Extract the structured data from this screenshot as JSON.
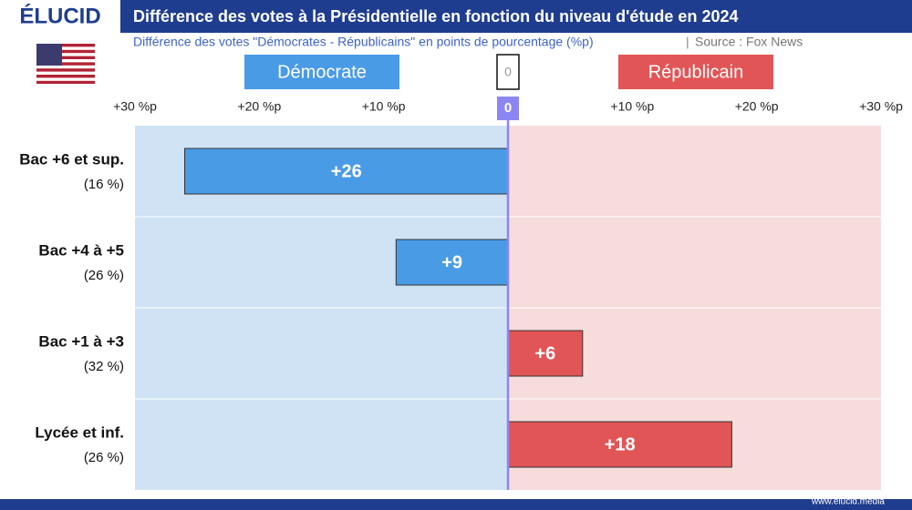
{
  "brand": "ÉLUCID",
  "footer": "www.elucid.media",
  "chart_data": {
    "type": "diverging-bar",
    "title": "Différence des votes à la Présidentielle en fonction du niveau d'étude en 2024",
    "subtitle": "Différence des votes \"Démocrates - Républicains\" en points de pourcentage (%p)",
    "source": "Source : Fox News",
    "categories": [
      "Bac +6 et sup.",
      "Bac +4 à +5",
      "Bac +1 à +3",
      "Lycée et inf."
    ],
    "shares": [
      "(16 %)",
      "(26 %)",
      "(32 %)",
      "(26 %)"
    ],
    "series": [
      {
        "name": "Démocrate",
        "color": "#4a9be6",
        "background": "#cfe3f5",
        "values": [
          -26,
          -9,
          null,
          null
        ],
        "value_labels": [
          "+26",
          "+9",
          null,
          null
        ]
      },
      {
        "name": "Républicain",
        "color": "#e25556",
        "background": "#f7dcdc",
        "values": [
          null,
          null,
          6,
          18
        ],
        "value_labels": [
          null,
          null,
          "+6",
          "+18"
        ]
      }
    ],
    "xlim": [
      -30,
      30
    ],
    "xticks": [
      {
        "value": -30,
        "label": "+30 %p"
      },
      {
        "value": -20,
        "label": "+20 %p"
      },
      {
        "value": -10,
        "label": "+10 %p"
      },
      0,
      {
        "value": 10,
        "label": "+10 %p"
      },
      {
        "value": 20,
        "label": "+20 %p"
      },
      {
        "value": 30,
        "label": "+30 %p"
      }
    ],
    "zero_line_color": "#8c86f2"
  }
}
